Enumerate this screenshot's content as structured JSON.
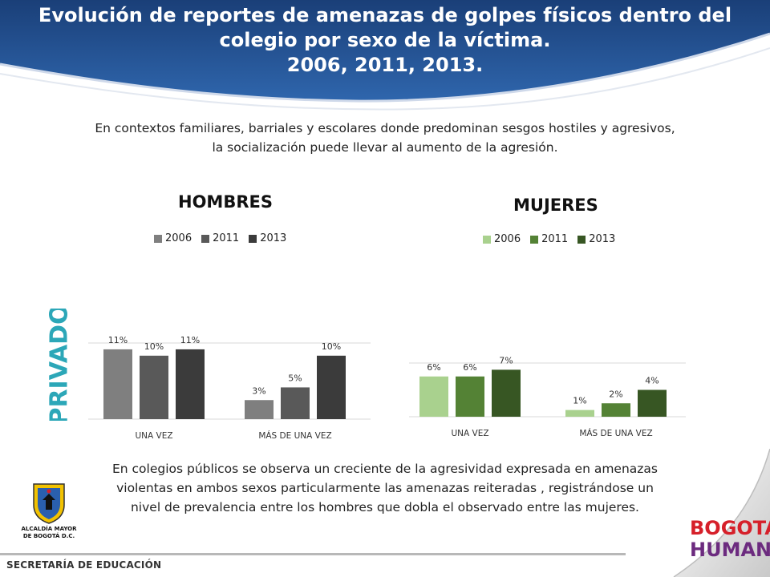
{
  "title": {
    "line1": "Evolución de reportes de amenazas de golpes físicos  dentro del",
    "line2": "colegio por sexo de la víctima.",
    "line3": "2006, 2011, 2013."
  },
  "intro": "En contextos familiares, barriales y escolares donde predominan sesgos hostiles y agresivos, la socialización puede llevar al aumento de la agresión.",
  "side_label": "PRIVADO",
  "conclusion": "En colegios públicos se observa un creciente de la agresividad expresada en amenazas violentas en ambos sexos  particularmente las amenazas reiteradas , registrándose un nivel de prevalencia entre los hombres que dobla el observado entre las mujeres.",
  "footer": {
    "secretaria": "SECRETARÍA DE EDUCACIÓN",
    "alcaldia_line1": "ALCALDÍA MAYOR",
    "alcaldia_line2": "DE BOGOTÁ D.C.",
    "logo_line1": "BOGOTÁ",
    "logo_line2": "HUMANA"
  },
  "colors": {
    "banner": "#1f4e8c",
    "privado": "#2ca7b8",
    "logo_red": "#d6202a",
    "logo_purple": "#6c2b7f"
  },
  "chart_data": [
    {
      "type": "bar",
      "title": "HOMBRES",
      "categories": [
        "UNA VEZ",
        "MÁS DE UNA VEZ"
      ],
      "series": [
        {
          "name": "2006",
          "values": [
            11,
            3
          ],
          "labels": [
            "11%",
            "3%"
          ],
          "color": "#7f7f7f"
        },
        {
          "name": "2011",
          "values": [
            10,
            5
          ],
          "labels": [
            "10%",
            "5%"
          ],
          "color": "#595959"
        },
        {
          "name": "2013",
          "values": [
            11,
            10
          ],
          "labels": [
            "11%",
            "10%"
          ],
          "color": "#3b3b3b"
        }
      ],
      "ylim": [
        0,
        12
      ],
      "grid": true,
      "legend": "top"
    },
    {
      "type": "bar",
      "title": "MUJERES",
      "categories": [
        "UNA VEZ",
        "MÁS DE UNA VEZ"
      ],
      "series": [
        {
          "name": "2006",
          "values": [
            6,
            1
          ],
          "labels": [
            "6%",
            "1%"
          ],
          "color": "#a9d18e"
        },
        {
          "name": "2011",
          "values": [
            6,
            2
          ],
          "labels": [
            "6%",
            "2%"
          ],
          "color": "#548235"
        },
        {
          "name": "2013",
          "values": [
            7,
            4
          ],
          "labels": [
            "7%",
            "4%"
          ],
          "color": "#375623"
        }
      ],
      "ylim": [
        0,
        8
      ],
      "grid": true,
      "legend": "top"
    }
  ]
}
